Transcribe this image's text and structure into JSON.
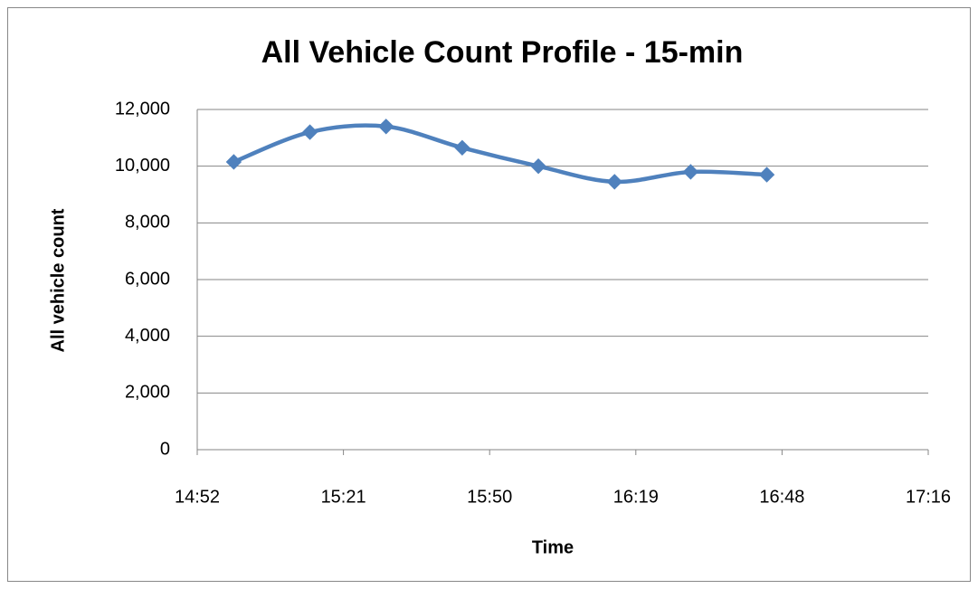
{
  "chart_data": {
    "type": "line",
    "title": "All Vehicle Count Profile - 15-min",
    "xlabel": "Time",
    "ylabel": "All vehicle count",
    "x": [
      900,
      915,
      930,
      945,
      960,
      975,
      990,
      1005
    ],
    "series": [
      {
        "name": "All vehicle count",
        "color": "#4f81bd",
        "values": [
          10150,
          11200,
          11400,
          10650,
          10000,
          9450,
          9800,
          9700
        ]
      }
    ],
    "xlim": [
      892.8,
      1036.8
    ],
    "xticks": [
      {
        "value": 892.8,
        "label": "14:52"
      },
      {
        "value": 921.6,
        "label": "15:21"
      },
      {
        "value": 950.4,
        "label": "15:50"
      },
      {
        "value": 979.2,
        "label": "16:19"
      },
      {
        "value": 1008,
        "label": "16:48"
      },
      {
        "value": 1036.8,
        "label": "17:16"
      }
    ],
    "ylim": [
      0,
      12000
    ],
    "yticks": [
      0,
      {
        "value": 2000,
        "label": "2,000"
      },
      {
        "value": 4000,
        "label": "4,000"
      },
      {
        "value": 6000,
        "label": "6,000"
      },
      {
        "value": 8000,
        "label": "8,000"
      },
      {
        "value": 10000,
        "label": "10,000"
      },
      {
        "value": 12000,
        "label": "12,000"
      }
    ],
    "grid": true,
    "smooth": true,
    "marker": "diamond"
  }
}
